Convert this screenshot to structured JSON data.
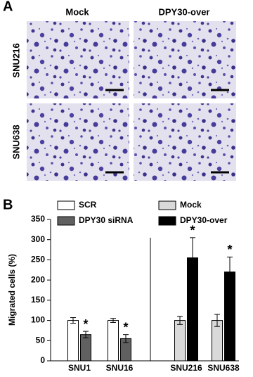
{
  "panel_a": {
    "label": "A",
    "columns": [
      "Mock",
      "DPY30-over"
    ],
    "rows": [
      "SNU216",
      "SNU638"
    ]
  },
  "chart_data": {
    "type": "bar",
    "label": "B",
    "y_label": "Migrated cells (%)",
    "categories": [
      "SNU1",
      "SNU16",
      "SNU216",
      "SNU638"
    ],
    "series": [
      {
        "name": "SCR",
        "color": "#ffffff",
        "values": [
          100,
          100,
          null,
          null
        ],
        "errors": [
          7,
          5,
          null,
          null
        ],
        "markers": [
          null,
          null,
          null,
          null
        ]
      },
      {
        "name": "DPY30 siRNA",
        "color": "#606060",
        "values": [
          65,
          55,
          null,
          null
        ],
        "errors": [
          8,
          10,
          null,
          null
        ],
        "markers": [
          "*",
          "*",
          null,
          null
        ]
      },
      {
        "name": "Mock",
        "color": "#d9d9d9",
        "values": [
          null,
          null,
          100,
          100
        ],
        "errors": [
          null,
          null,
          10,
          15
        ],
        "markers": [
          null,
          null,
          null,
          null
        ]
      },
      {
        "name": "DPY30-over",
        "color": "#000000",
        "values": [
          null,
          null,
          255,
          220
        ],
        "errors": [
          null,
          null,
          50,
          37
        ],
        "markers": [
          null,
          null,
          "*",
          "*"
        ]
      }
    ],
    "ylim": [
      0,
      350
    ],
    "yticks": [
      0,
      50,
      100,
      150,
      200,
      250,
      300,
      350
    ]
  }
}
